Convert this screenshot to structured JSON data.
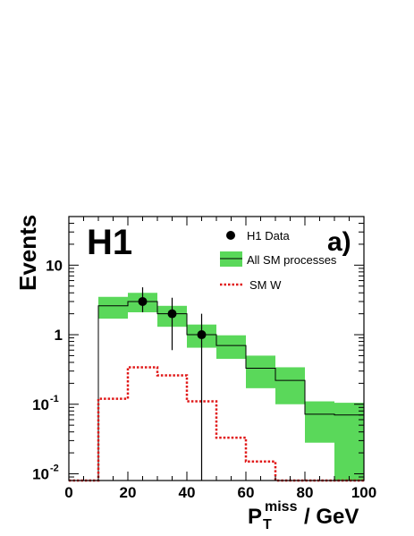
{
  "chart_data": {
    "type": "histogram",
    "experiment_label": "H1",
    "panel_label": "a)",
    "xlabel_main": "P",
    "xlabel_sub": "T",
    "xlabel_sup": "miss",
    "xlabel_unit": "/ GeV",
    "ylabel": "Events",
    "xlim": [
      0,
      100
    ],
    "ylim": [
      0.008,
      50
    ],
    "y_scale": "log",
    "grid": false,
    "legend_position": "top-right",
    "x_ticks": [
      0,
      20,
      40,
      60,
      80,
      100
    ],
    "x_tick_labels": [
      "0",
      "20",
      "40",
      "60",
      "80",
      "100"
    ],
    "y_ticks": [
      {
        "value": 10,
        "base": "10",
        "exp": ""
      },
      {
        "value": 1,
        "base": "1",
        "exp": ""
      },
      {
        "value": 0.1,
        "base": "10",
        "exp": "-1"
      },
      {
        "value": 0.01,
        "base": "10",
        "exp": "-2"
      }
    ],
    "bin_edges": [
      0,
      10,
      20,
      30,
      40,
      50,
      60,
      70,
      80,
      90,
      100
    ],
    "series": [
      {
        "name": "All SM processes",
        "kind": "band-with-line",
        "color": "#5ad85a",
        "values": [
          0.008,
          2.6,
          3.0,
          2.0,
          1.0,
          0.7,
          0.33,
          0.22,
          0.072,
          0.07
        ],
        "band_low": [
          0.008,
          1.7,
          2.1,
          1.3,
          0.65,
          0.45,
          0.17,
          0.1,
          0.028,
          0.008
        ],
        "band_high": [
          0.008,
          3.5,
          4.0,
          2.6,
          1.4,
          0.98,
          0.5,
          0.34,
          0.11,
          0.105
        ]
      },
      {
        "name": "SM W",
        "kind": "dotted-line",
        "color": "#e01818",
        "values": [
          0.008,
          0.12,
          0.34,
          0.26,
          0.11,
          0.033,
          0.015,
          0.008,
          0.008,
          0.008
        ]
      },
      {
        "name": "H1 Data",
        "kind": "points",
        "color": "#000000",
        "points": [
          {
            "x": 25,
            "y": 3,
            "y_low": 2.1,
            "y_high": 4.8
          },
          {
            "x": 35,
            "y": 2,
            "y_low": 0.6,
            "y_high": 3.4
          },
          {
            "x": 45,
            "y": 1,
            "y_low": 0.008,
            "y_high": 2.0
          }
        ]
      }
    ]
  }
}
